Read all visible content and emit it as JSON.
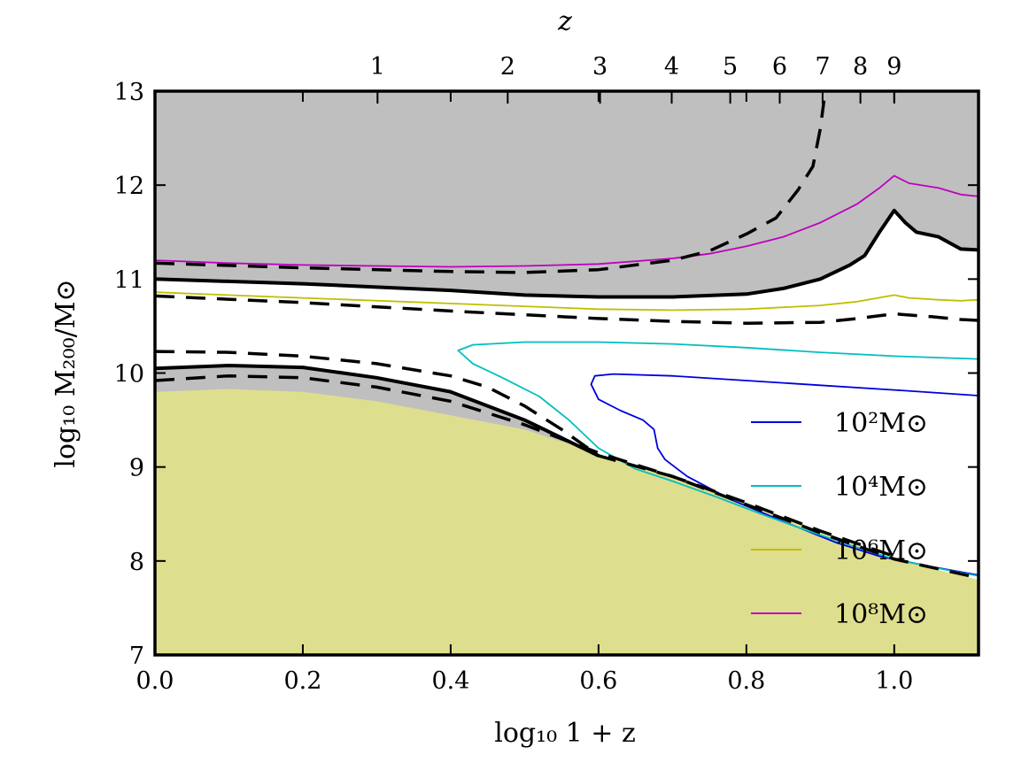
{
  "chart_data": {
    "type": "line",
    "xlabel": "log₁₀ 1 + z",
    "ylabel": "log₁₀ M₂₀₀/M⊙",
    "top_xlabel": "z",
    "xlim": [
      0.0,
      1.114
    ],
    "ylim": [
      7,
      13
    ],
    "xticks": [
      0.0,
      0.2,
      0.4,
      0.6,
      0.8,
      1.0
    ],
    "xtick_labels": [
      "0.0",
      "0.2",
      "0.4",
      "0.6",
      "0.8",
      "1.0"
    ],
    "yticks": [
      7,
      8,
      9,
      10,
      11,
      12,
      13
    ],
    "ytick_labels": [
      "7",
      "8",
      "9",
      "10",
      "11",
      "12",
      "13"
    ],
    "top_ticks": [
      1,
      2,
      3,
      4,
      5,
      6,
      7,
      8,
      9
    ],
    "top_tick_labels": [
      "1",
      "2",
      "3",
      "4",
      "5",
      "6",
      "7",
      "8",
      "9"
    ],
    "legend_position": "right",
    "colors": {
      "upper_shade": "#bfbfbf",
      "lower_shade": "#dede8f",
      "black": "#000000"
    },
    "series": [
      {
        "name": "10²M⊙",
        "color": "#0000dd",
        "stroke": 1.8,
        "x": [
          1.114,
          1.0,
          0.9,
          0.8,
          0.7,
          0.62,
          0.595,
          0.59,
          0.6,
          0.63,
          0.66,
          0.675,
          0.68,
          0.69,
          0.72,
          0.78,
          0.85,
          0.92,
          0.98,
          1.05,
          1.114
        ],
        "y": [
          9.76,
          9.82,
          9.87,
          9.92,
          9.97,
          9.99,
          9.97,
          9.88,
          9.72,
          9.6,
          9.5,
          9.4,
          9.2,
          9.08,
          8.9,
          8.65,
          8.42,
          8.2,
          8.05,
          7.94,
          7.85
        ]
      },
      {
        "name": "10⁴M⊙",
        "color": "#00bfbf",
        "stroke": 1.8,
        "x": [
          1.114,
          1.0,
          0.9,
          0.8,
          0.7,
          0.6,
          0.5,
          0.43,
          0.41,
          0.43,
          0.47,
          0.52,
          0.56,
          0.6,
          0.65,
          0.7,
          0.76,
          0.82,
          0.88,
          0.94,
          1.0,
          1.06,
          1.114
        ],
        "y": [
          10.15,
          10.18,
          10.22,
          10.27,
          10.31,
          10.33,
          10.33,
          10.3,
          10.24,
          10.1,
          9.95,
          9.75,
          9.5,
          9.2,
          8.98,
          8.85,
          8.68,
          8.5,
          8.33,
          8.17,
          8.02,
          7.92,
          7.84
        ]
      },
      {
        "name": "10⁶M⊙",
        "color": "#bfbf00",
        "stroke": 1.8,
        "x": [
          0.0,
          0.2,
          0.4,
          0.5,
          0.6,
          0.7,
          0.8,
          0.9,
          0.95,
          1.0,
          1.02,
          1.06,
          1.09,
          1.114
        ],
        "y": [
          10.86,
          10.8,
          10.74,
          10.71,
          10.68,
          10.67,
          10.68,
          10.72,
          10.76,
          10.83,
          10.8,
          10.78,
          10.77,
          10.78
        ]
      },
      {
        "name": "10⁸M⊙",
        "color": "#bf00bf",
        "stroke": 1.8,
        "x": [
          0.0,
          0.1,
          0.2,
          0.3,
          0.4,
          0.5,
          0.6,
          0.7,
          0.75,
          0.8,
          0.85,
          0.9,
          0.95,
          0.98,
          1.0,
          1.02,
          1.06,
          1.09,
          1.114
        ],
        "y": [
          11.2,
          11.17,
          11.15,
          11.14,
          11.13,
          11.14,
          11.16,
          11.22,
          11.27,
          11.35,
          11.45,
          11.6,
          11.8,
          11.97,
          12.1,
          12.02,
          11.97,
          11.9,
          11.88
        ]
      }
    ],
    "extra_lines": [
      {
        "id": "black-solid-upper",
        "color": "#000000",
        "stroke": 4,
        "dash": "",
        "x": [
          0.0,
          0.2,
          0.4,
          0.5,
          0.6,
          0.7,
          0.8,
          0.85,
          0.9,
          0.94,
          0.96,
          0.98,
          1.0,
          1.015,
          1.03,
          1.06,
          1.09,
          1.114
        ],
        "y": [
          11.0,
          10.95,
          10.88,
          10.83,
          10.81,
          10.81,
          10.84,
          10.9,
          11.0,
          11.15,
          11.25,
          11.5,
          11.73,
          11.6,
          11.5,
          11.45,
          11.32,
          11.31
        ]
      },
      {
        "id": "black-dashed-upper-low",
        "color": "#000000",
        "stroke": 3.5,
        "dash": "22,13",
        "x": [
          0.0,
          0.2,
          0.4,
          0.6,
          0.7,
          0.8,
          0.9,
          0.95,
          1.0,
          1.05,
          1.09,
          1.114
        ],
        "y": [
          10.82,
          10.75,
          10.66,
          10.58,
          10.55,
          10.53,
          10.54,
          10.58,
          10.63,
          10.6,
          10.57,
          10.56
        ]
      },
      {
        "id": "black-dashed-upper-high",
        "color": "#000000",
        "stroke": 3.5,
        "dash": "22,13",
        "x": [
          0.0,
          0.2,
          0.4,
          0.5,
          0.6,
          0.7,
          0.75,
          0.8,
          0.84,
          0.87,
          0.89,
          0.9,
          0.905
        ],
        "y": [
          11.17,
          11.12,
          11.08,
          11.07,
          11.1,
          11.2,
          11.3,
          11.48,
          11.65,
          11.95,
          12.2,
          12.6,
          12.9
        ]
      },
      {
        "id": "black-solid-lower",
        "color": "#000000",
        "stroke": 4,
        "dash": "",
        "x": [
          0.0,
          0.1,
          0.2,
          0.3,
          0.4,
          0.5,
          0.6
        ],
        "y": [
          10.05,
          10.08,
          10.06,
          9.95,
          9.8,
          9.5,
          9.12
        ]
      },
      {
        "id": "black-dashed-lower-high",
        "color": "#000000",
        "stroke": 3.5,
        "dash": "22,13",
        "x": [
          0.0,
          0.1,
          0.2,
          0.3,
          0.4,
          0.45,
          0.5,
          0.55,
          0.6,
          0.7,
          0.8,
          0.9,
          1.0,
          1.114
        ],
        "y": [
          10.23,
          10.22,
          10.18,
          10.1,
          9.97,
          9.85,
          9.65,
          9.4,
          9.12,
          8.9,
          8.6,
          8.3,
          8.02,
          7.82
        ]
      },
      {
        "id": "black-dashed-lower-low",
        "color": "#000000",
        "stroke": 3.5,
        "dash": "22,13",
        "x": [
          0.0,
          0.1,
          0.2,
          0.3,
          0.4,
          0.5,
          0.6,
          0.7,
          0.8,
          0.9,
          1.0
        ],
        "y": [
          9.92,
          9.97,
          9.95,
          9.85,
          9.7,
          9.45,
          9.15,
          8.9,
          8.62,
          8.32,
          8.05
        ]
      }
    ],
    "shaded_regions": {
      "upper_boundary": {
        "x": [
          0.0,
          0.2,
          0.4,
          0.5,
          0.6,
          0.7,
          0.8,
          0.85,
          0.9,
          0.94,
          0.96,
          0.98,
          1.0,
          1.015,
          1.03,
          1.06,
          1.09,
          1.114
        ],
        "y": [
          11.0,
          10.95,
          10.88,
          10.83,
          10.81,
          10.81,
          10.84,
          10.9,
          11.0,
          11.15,
          11.25,
          11.5,
          11.73,
          11.6,
          11.5,
          11.45,
          11.32,
          11.31
        ]
      },
      "lower_grey_top": {
        "x": [
          0.0,
          0.1,
          0.2,
          0.3,
          0.4,
          0.5,
          0.6
        ],
        "y": [
          10.05,
          10.08,
          10.06,
          9.95,
          9.8,
          9.5,
          9.12
        ]
      },
      "olive_top": {
        "x": [
          0.0,
          0.1,
          0.2,
          0.3,
          0.4,
          0.5,
          0.6,
          0.7,
          0.8,
          0.9,
          1.0,
          1.114
        ],
        "y": [
          9.8,
          9.83,
          9.8,
          9.7,
          9.55,
          9.4,
          9.14,
          8.9,
          8.6,
          8.3,
          8.02,
          7.8
        ]
      }
    }
  }
}
